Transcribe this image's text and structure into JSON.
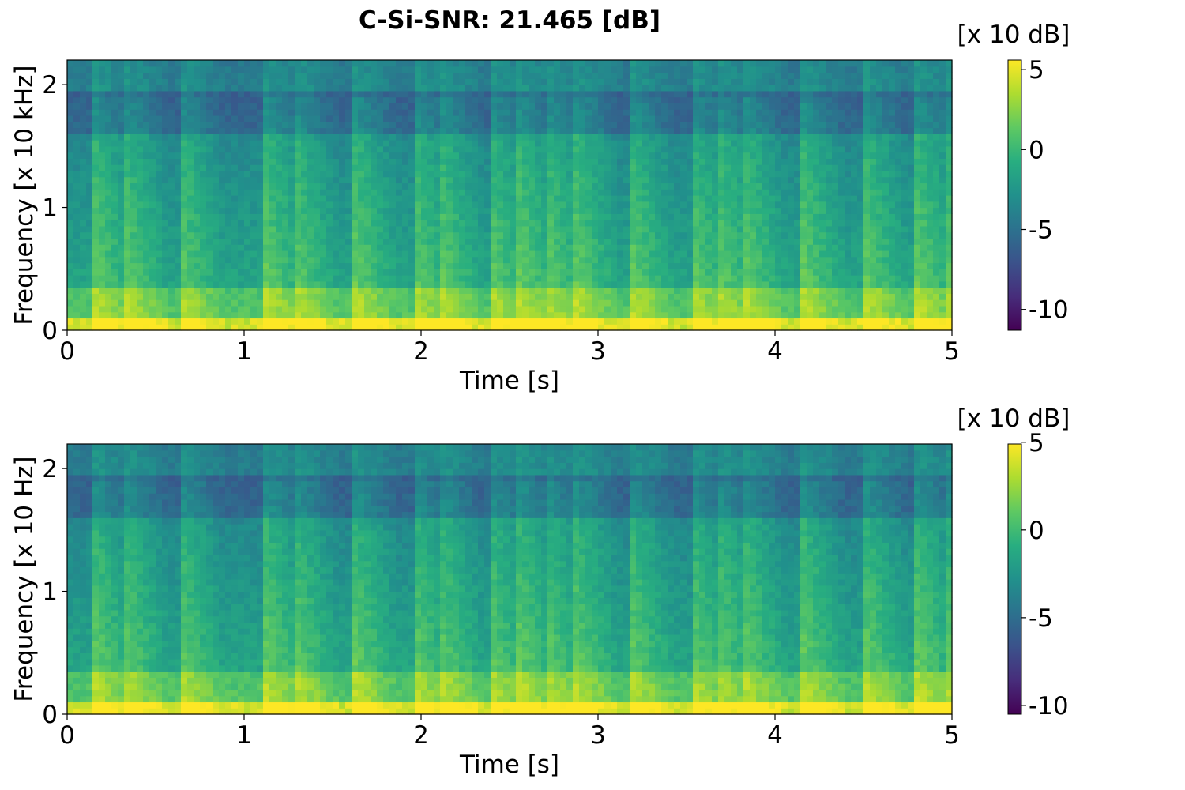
{
  "chart_data": [
    {
      "type": "heatmap",
      "title": "C-Si-SNR: 21.465 [dB]",
      "xlabel": "Time [s]",
      "ylabel": "Frequency [x 10 kHz]",
      "xlim": [
        0,
        5
      ],
      "ylim": [
        0,
        2.2
      ],
      "xticks": [
        "0",
        "1",
        "2",
        "3",
        "4",
        "5"
      ],
      "yticks": [
        "0",
        "1",
        "2"
      ],
      "colormap": "viridis",
      "colorbar": {
        "label": "[x 10 dB]",
        "range": [
          -11.3,
          5.6
        ],
        "ticks": [
          "5",
          "0",
          "-5",
          "-10"
        ],
        "tick_values": [
          5,
          0,
          -5,
          -10
        ]
      },
      "onsets_s": [
        0.15,
        0.32,
        0.63,
        1.12,
        1.28,
        1.62,
        1.95,
        2.1,
        2.38,
        2.55,
        2.7,
        2.87,
        3.18,
        3.52,
        3.67,
        3.82,
        4.15,
        4.5,
        4.8,
        4.95
      ]
    },
    {
      "type": "heatmap",
      "title": "",
      "xlabel": "Time [s]",
      "ylabel": "Frequency [x 10 Hz]",
      "xlim": [
        0,
        5
      ],
      "ylim": [
        0,
        2.2
      ],
      "xticks": [
        "0",
        "1",
        "2",
        "3",
        "4",
        "5"
      ],
      "yticks": [
        "0",
        "1",
        "2"
      ],
      "colormap": "viridis",
      "colorbar": {
        "label": "[x 10 dB]",
        "range": [
          -10.5,
          4.9
        ],
        "ticks": [
          "5",
          "0",
          "-5",
          "-10"
        ],
        "tick_values": [
          5,
          0,
          -5,
          -10
        ]
      },
      "onsets_s": [
        0.15,
        0.32,
        0.63,
        1.12,
        1.28,
        1.62,
        1.95,
        2.1,
        2.38,
        2.55,
        2.7,
        2.87,
        3.18,
        3.52,
        3.67,
        3.82,
        4.15,
        4.5,
        4.8,
        4.95
      ]
    }
  ]
}
